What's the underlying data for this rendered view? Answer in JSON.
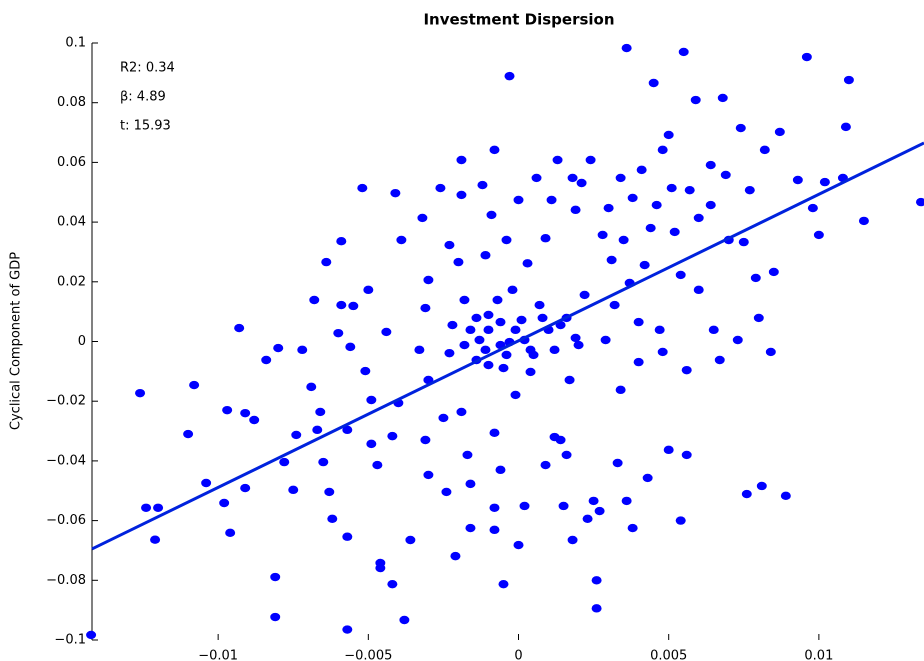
{
  "chart_data": {
    "type": "scatter",
    "title": "Investment Dispersion",
    "y_label": "Cyclical Component of GDP",
    "annotations": [
      "R2: 0.34",
      "β: 4.89",
      "t: 15.93"
    ],
    "color": "#0000ff",
    "xlim": [
      -0.0142,
      0.0135
    ],
    "ylim": [
      -0.1,
      0.1
    ],
    "xticks": [
      {
        "value": -0.01,
        "label": "−0.01"
      },
      {
        "value": -0.005,
        "label": "−0.005"
      },
      0,
      0.005,
      0.01
    ],
    "yticks": [
      {
        "value": -0.1,
        "label": "−0.1"
      },
      {
        "value": -0.08,
        "label": "−0.08"
      },
      {
        "value": -0.06,
        "label": "−0.06"
      },
      {
        "value": -0.04,
        "label": "−0.04"
      },
      {
        "value": -0.02,
        "label": "−0.02"
      },
      0,
      0.02,
      0.04,
      0.06,
      0.08,
      0.1
    ],
    "x": [
      -0.01423,
      -0.0126,
      -0.0124,
      -0.012,
      -0.0121,
      -0.0108,
      -0.011,
      -0.0104,
      -0.0093,
      -0.0097,
      -0.0091,
      -0.0098,
      -0.0096,
      -0.0091,
      -0.0088,
      -0.0084,
      -0.008,
      -0.0081,
      -0.0081,
      -0.0078,
      -0.0075,
      -0.0074,
      -0.0072,
      -0.0069,
      -0.0068,
      -0.0066,
      -0.0067,
      -0.0064,
      -0.0065,
      -0.0063,
      -0.0062,
      -0.0059,
      -0.006,
      -0.0059,
      -0.0055,
      -0.0056,
      -0.0057,
      -0.0057,
      -0.0057,
      -0.0052,
      -0.005,
      -0.0051,
      -0.0049,
      -0.0049,
      -0.0047,
      -0.0046,
      -0.0046,
      -0.0041,
      -0.0039,
      -0.0044,
      -0.004,
      -0.0042,
      -0.0042,
      -0.0038,
      -0.0036,
      -0.0032,
      -0.003,
      -0.0031,
      -0.0033,
      -0.003,
      -0.0031,
      -0.003,
      -0.0026,
      -0.0023,
      -0.0022,
      -0.0023,
      -0.0025,
      -0.0024,
      -0.0021,
      -0.002,
      -0.0019,
      -0.0019,
      -0.0018,
      -0.0018,
      -0.0019,
      -0.0017,
      -0.0016,
      -0.0016,
      -0.0014,
      -0.0014,
      -0.0012,
      -0.0011,
      -0.001,
      -0.001,
      -0.0008,
      -0.0009,
      -0.0008,
      -0.0008,
      -0.0008,
      -0.0007,
      -0.0006,
      -0.0006,
      -0.0005,
      -0.0003,
      -0.0004,
      -0.0003,
      -0.0002,
      -0.0001,
      0,
      0,
      0.0001,
      0.0002,
      0.0003,
      0.0004,
      0.0006,
      0.0007,
      0.0009,
      0.0009,
      0.001,
      0.0011,
      0.0012,
      0.0013,
      0.0014,
      0.0015,
      0.0016,
      0.0016,
      0.0017,
      0.0018,
      0.0018,
      0.0019,
      0.002,
      0.0021,
      0.0022,
      0.0023,
      0.0024,
      0.0025,
      0.0026,
      0.0026,
      0.0027,
      0.0028,
      0.0029,
      0.003,
      0.0031,
      0.0032,
      0.0033,
      0.0034,
      0.0034,
      0.0035,
      0.0036,
      0.0036,
      0.0037,
      0.0038,
      0.0038,
      0.004,
      0.004,
      0.0041,
      0.0042,
      0.0043,
      0.0044,
      0.0045,
      0.0046,
      0.0047,
      0.0048,
      0.0048,
      0.005,
      0.005,
      0.0051,
      0.0052,
      0.0054,
      0.0054,
      0.0055,
      0.0056,
      0.0056,
      0.0057,
      0.0059,
      0.006,
      0.006,
      0.0064,
      0.0064,
      0.0065,
      0.0067,
      0.0068,
      0.0069,
      0.007,
      0.0073,
      0.0074,
      0.0075,
      0.0076,
      0.0077,
      0.0079,
      0.008,
      0.0081,
      0.0082,
      0.0084,
      0.0085,
      0.0087,
      0.0089,
      0.0093,
      0.0096,
      0.0098,
      0.01,
      0.0102,
      0.0108,
      0.0109,
      0.011,
      0.0115,
      0.0134,
      -0.0016,
      -0.0013,
      -0.0011,
      -0.0006,
      -0.0004,
      -0.0001,
      0.0002,
      0.0005,
      0.0008,
      0.0012,
      0.0014,
      0.0019,
      -0.001,
      -0.0005,
      0.0004
    ],
    "y": [
      -0.0983,
      -0.0173,
      -0.0557,
      -0.0557,
      -0.0664,
      -0.0146,
      -0.031,
      -0.0474,
      0.0045,
      -0.023,
      -0.024,
      -0.0541,
      -0.0641,
      -0.0491,
      -0.0263,
      -0.0062,
      -0.0022,
      -0.0789,
      -0.0923,
      -0.0404,
      -0.0497,
      -0.0313,
      -0.0028,
      -0.0152,
      0.0139,
      -0.0236,
      -0.0296,
      0.0266,
      -0.0404,
      -0.0504,
      -0.0594,
      0.0336,
      0.0028,
      0.0122,
      0.0119,
      -0.0018,
      -0.0296,
      -0.0654,
      -0.0965,
      0.0514,
      0.0173,
      -0.0099,
      -0.0196,
      -0.0343,
      -0.0414,
      -0.0742,
      -0.0759,
      0.0497,
      0.034,
      0.0032,
      -0.0206,
      -0.0317,
      -0.0813,
      -0.0933,
      -0.0665,
      0.0414,
      0.0206,
      0.0112,
      -0.0028,
      -0.0129,
      -0.033,
      -0.0447,
      0.0514,
      0.0323,
      0.0055,
      -0.0039,
      -0.0256,
      -0.0504,
      -0.0719,
      0.0266,
      0.0491,
      0.0608,
      0.0139,
      -0.0012,
      -0.0236,
      -0.038,
      -0.0625,
      -0.0477,
      -0.0062,
      0.0079,
      0.0524,
      0.0289,
      0.0039,
      -0.0079,
      0.0642,
      0.0424,
      -0.0306,
      -0.0557,
      -0.0631,
      0.0139,
      -0.0012,
      -0.043,
      -0.0813,
      0.0889,
      0.034,
      -0.0002,
      0.0173,
      -0.0179,
      0.0474,
      -0.0682,
      0.0072,
      -0.0551,
      0.0262,
      -0.0028,
      0.0548,
      0.0122,
      0.0346,
      -0.0414,
      0.0039,
      0.0474,
      -0.032,
      0.0608,
      -0.033,
      -0.0551,
      0.0079,
      -0.038,
      -0.0129,
      0.0548,
      -0.0665,
      0.0441,
      -0.0012,
      0.0531,
      0.0156,
      -0.0594,
      0.0608,
      -0.0534,
      -0.08,
      -0.0894,
      -0.0568,
      0.0357,
      0.0005,
      0.0447,
      0.0273,
      0.0122,
      -0.0407,
      0.0548,
      -0.0162,
      0.034,
      -0.0534,
      0.0983,
      0.0196,
      -0.0625,
      0.0481,
      -0.0069,
      0.0065,
      0.0575,
      0.0256,
      -0.0457,
      0.038,
      0.0866,
      0.0457,
      0.0039,
      0.0642,
      -0.0035,
      -0.0363,
      0.0692,
      0.0514,
      0.0367,
      -0.06,
      0.0223,
      0.097,
      -0.0096,
      -0.038,
      0.0507,
      0.0809,
      0.0173,
      0.0414,
      0.0591,
      0.0457,
      0.0039,
      -0.0062,
      0.0816,
      0.0558,
      0.034,
      0.0005,
      0.0715,
      0.0333,
      -0.0511,
      0.0507,
      0.0213,
      0.0079,
      -0.0484,
      0.0642,
      -0.0035,
      0.0233,
      0.0702,
      -0.0517,
      0.0541,
      0.0953,
      0.0447,
      0.0357,
      0.0534,
      0.0548,
      0.0719,
      0.0876,
      0.0404,
      0.0467,
      0.0039,
      0.0005,
      -0.0028,
      0.0065,
      -0.0045,
      0.0039,
      0.0005,
      -0.0045,
      0.0079,
      -0.0028,
      0.0055,
      0.0012,
      0.0089,
      -0.0089,
      -0.0102
    ],
    "fit": {
      "color": "#0022dd",
      "x": [
        -0.0142,
        0.0135
      ],
      "y": [
        -0.0695,
        0.0665
      ]
    }
  }
}
